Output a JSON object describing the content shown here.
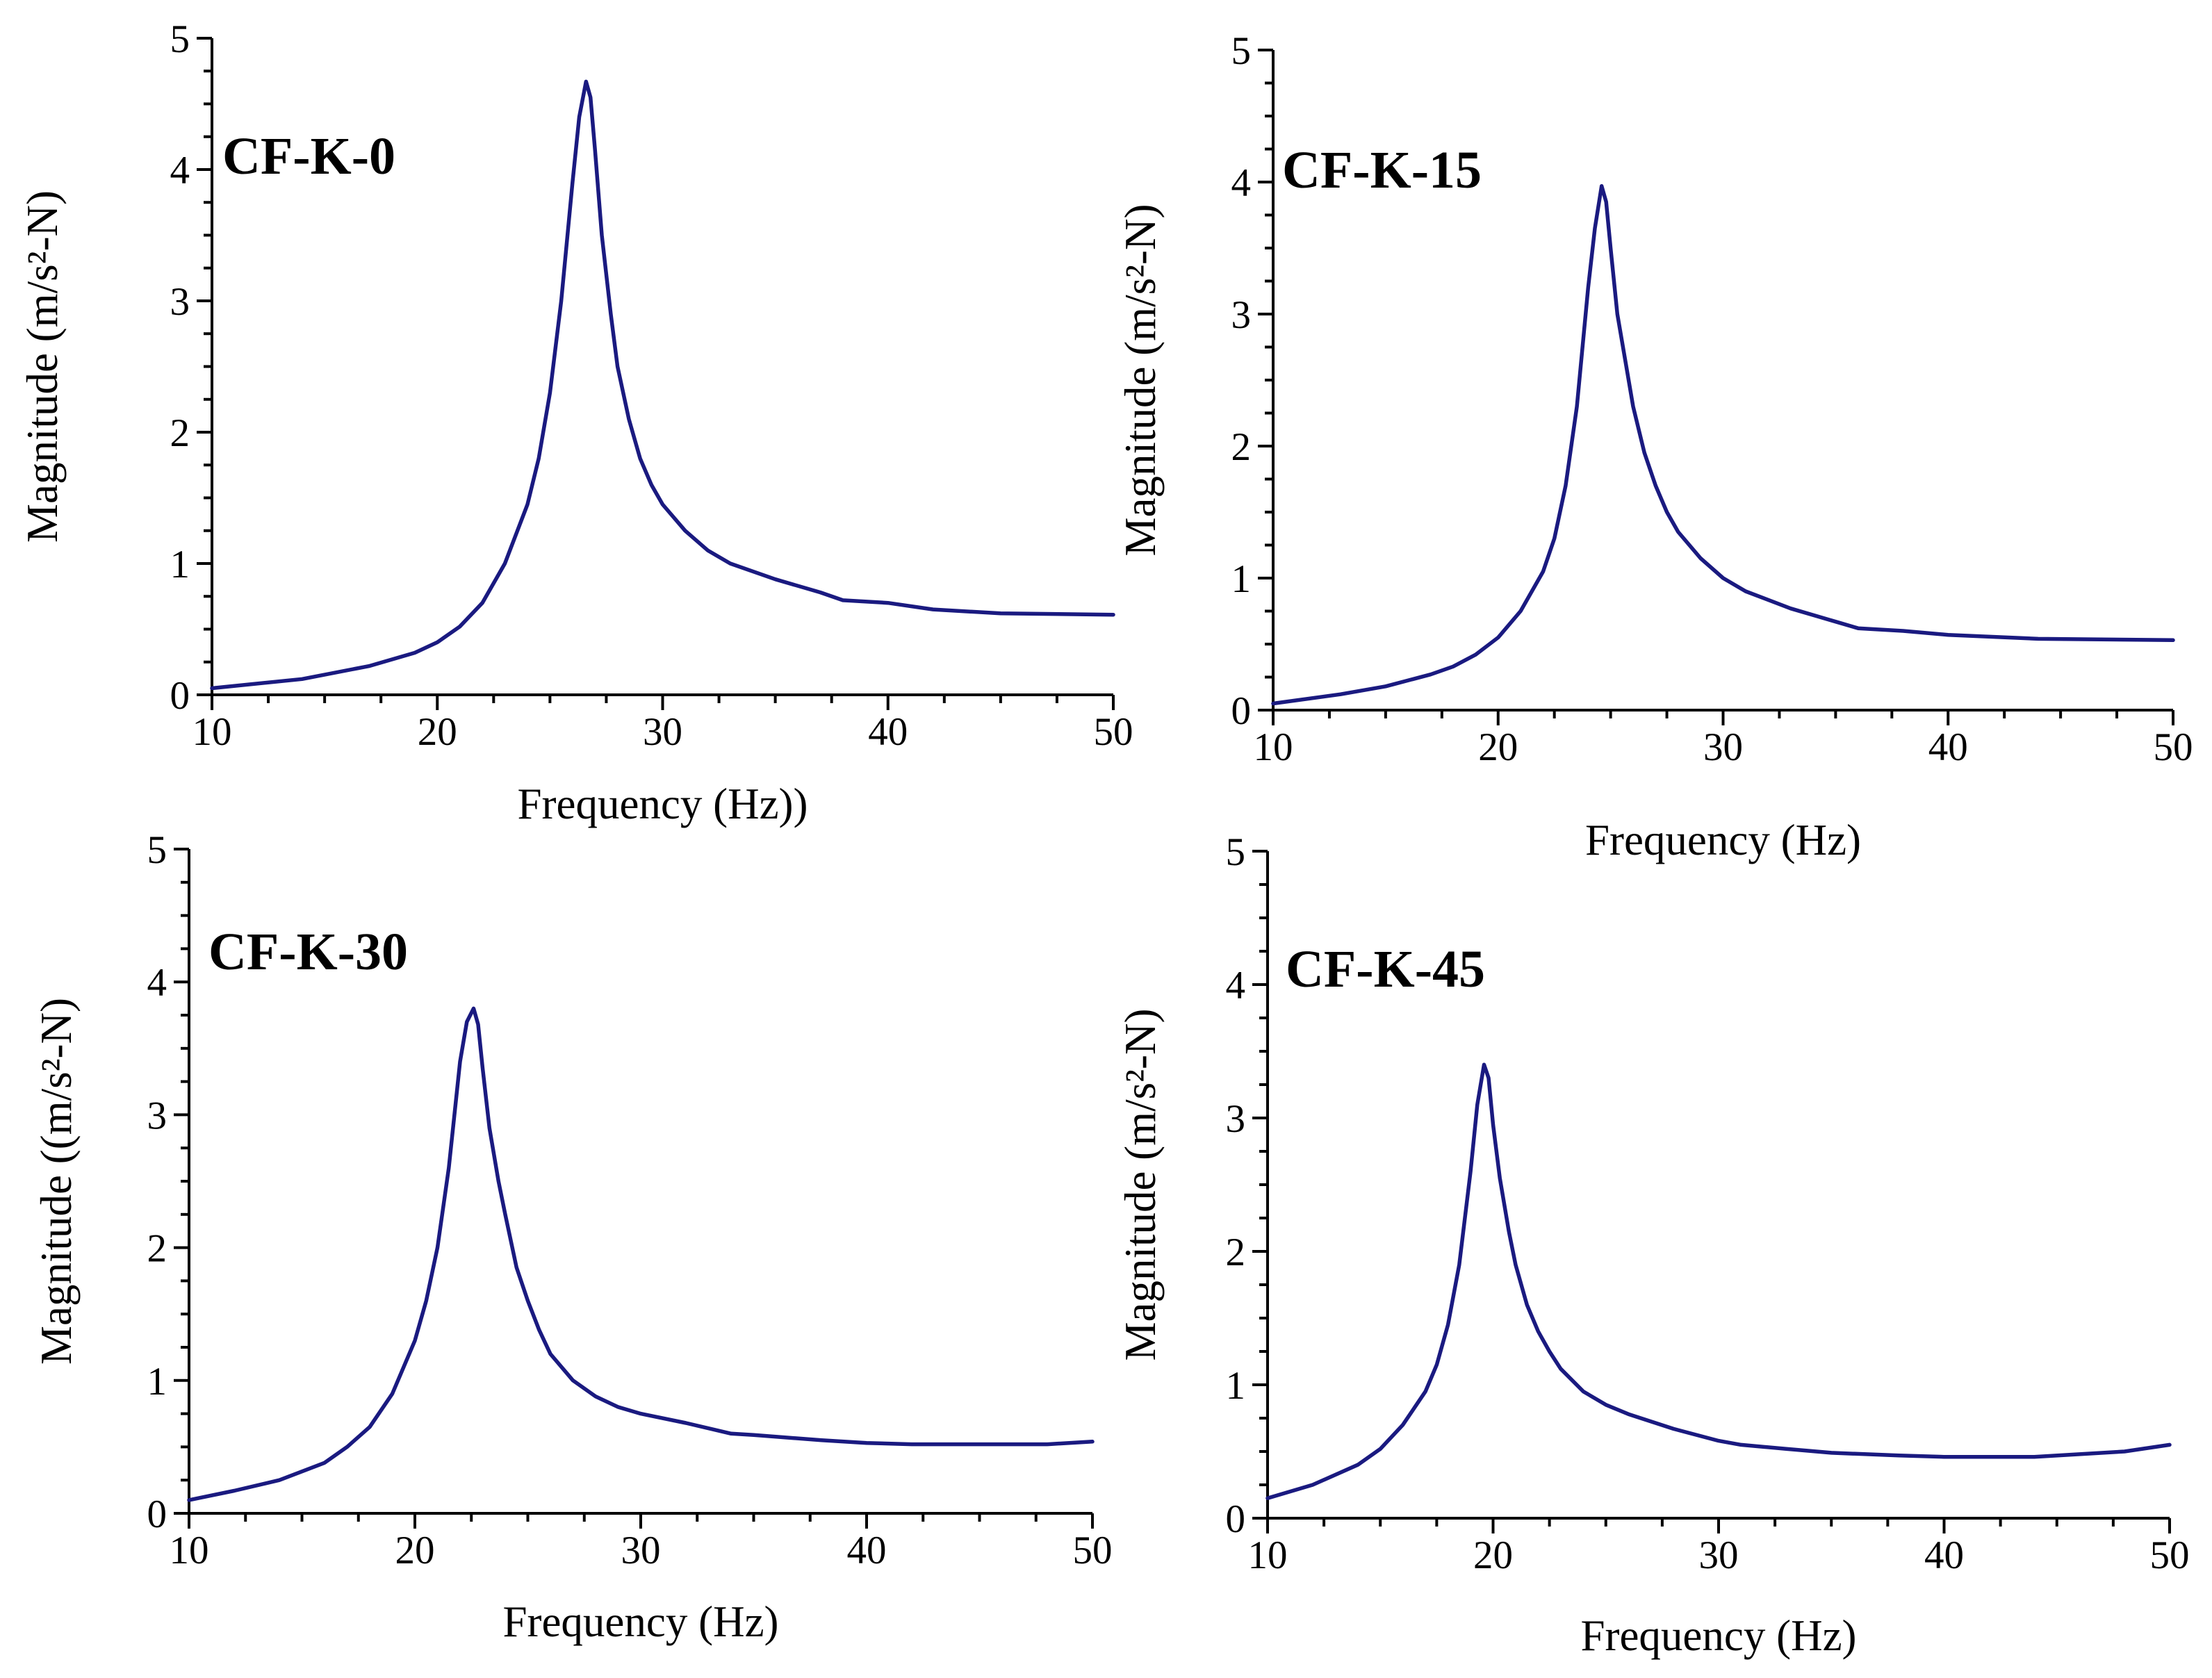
{
  "colors": {
    "curve": "#1a1a80",
    "axis": "#000000",
    "background": "#ffffff"
  },
  "chart_data": [
    {
      "type": "line",
      "title": "CF-K-0",
      "xlabel": "Frequency (Hz))",
      "ylabel": "Magnitude (m/s²-N)",
      "xlim": [
        10,
        50
      ],
      "ylim": [
        0,
        5
      ],
      "xticks": [
        10,
        20,
        30,
        40,
        50
      ],
      "yticks": [
        0,
        1,
        2,
        3,
        4,
        5
      ],
      "series": [
        {
          "name": "CF-K-0",
          "x": [
            10,
            14,
            17,
            19,
            20,
            21,
            22,
            23,
            24,
            24.5,
            25,
            25.5,
            26,
            26.3,
            26.6,
            26.8,
            27,
            27.3,
            27.7,
            28,
            28.5,
            29,
            29.5,
            30,
            31,
            32,
            33,
            35,
            37,
            38,
            40,
            42,
            45,
            50
          ],
          "values": [
            0.05,
            0.12,
            0.22,
            0.32,
            0.4,
            0.52,
            0.7,
            1.0,
            1.45,
            1.8,
            2.3,
            3.0,
            3.9,
            4.4,
            4.67,
            4.55,
            4.15,
            3.5,
            2.9,
            2.5,
            2.1,
            1.8,
            1.6,
            1.45,
            1.25,
            1.1,
            1.0,
            0.88,
            0.78,
            0.72,
            0.7,
            0.65,
            0.62,
            0.61
          ]
        }
      ]
    },
    {
      "type": "line",
      "title": "CF-K-15",
      "xlabel": "Frequency (Hz)",
      "ylabel": "Magnitude (m/s²-N)",
      "xlim": [
        10,
        50
      ],
      "ylim": [
        0,
        5
      ],
      "xticks": [
        10,
        20,
        30,
        40,
        50
      ],
      "yticks": [
        0,
        1,
        2,
        3,
        4,
        5
      ],
      "series": [
        {
          "name": "CF-K-15",
          "x": [
            10,
            13,
            15,
            17,
            18,
            19,
            20,
            21,
            22,
            22.5,
            23,
            23.5,
            24,
            24.3,
            24.6,
            24.8,
            25,
            25.3,
            25.7,
            26,
            26.5,
            27,
            27.5,
            28,
            29,
            30,
            31,
            33,
            35,
            36,
            38,
            40,
            44,
            50
          ],
          "values": [
            0.05,
            0.12,
            0.18,
            0.27,
            0.33,
            0.42,
            0.55,
            0.75,
            1.05,
            1.3,
            1.7,
            2.3,
            3.2,
            3.65,
            3.97,
            3.85,
            3.5,
            3.0,
            2.6,
            2.3,
            1.95,
            1.7,
            1.5,
            1.35,
            1.15,
            1.0,
            0.9,
            0.77,
            0.67,
            0.62,
            0.6,
            0.57,
            0.54,
            0.53
          ]
        }
      ]
    },
    {
      "type": "line",
      "title": "CF-K-30",
      "xlabel": "Frequency (Hz)",
      "ylabel": "Magnitude ((m/s²-N)",
      "xlim": [
        10,
        50
      ],
      "ylim": [
        0,
        5
      ],
      "xticks": [
        10,
        20,
        30,
        40,
        50
      ],
      "yticks": [
        0,
        1,
        2,
        3,
        4,
        5
      ],
      "series": [
        {
          "name": "CF-K-30",
          "x": [
            10,
            12,
            14,
            16,
            17,
            18,
            19,
            20,
            20.5,
            21,
            21.5,
            22,
            22.3,
            22.6,
            22.8,
            23,
            23.3,
            23.7,
            24,
            24.5,
            25,
            25.5,
            26,
            27,
            28,
            29,
            30,
            32,
            34,
            35,
            38,
            40,
            42,
            45,
            48,
            50
          ],
          "values": [
            0.1,
            0.17,
            0.25,
            0.38,
            0.5,
            0.65,
            0.9,
            1.3,
            1.6,
            2.0,
            2.6,
            3.4,
            3.7,
            3.8,
            3.68,
            3.35,
            2.9,
            2.5,
            2.25,
            1.85,
            1.6,
            1.38,
            1.2,
            1.0,
            0.88,
            0.8,
            0.75,
            0.68,
            0.6,
            0.59,
            0.55,
            0.53,
            0.52,
            0.52,
            0.52,
            0.54
          ]
        }
      ]
    },
    {
      "type": "line",
      "title": "CF-K-45",
      "xlabel": "Frequency (Hz)",
      "ylabel": "Magnitude (m/s²-N)",
      "xlim": [
        10,
        50
      ],
      "ylim": [
        0,
        5
      ],
      "xticks": [
        10,
        20,
        30,
        40,
        50
      ],
      "yticks": [
        0,
        1,
        2,
        3,
        4,
        5
      ],
      "series": [
        {
          "name": "CF-K-45",
          "x": [
            10,
            12,
            14,
            15,
            16,
            17,
            17.5,
            18,
            18.5,
            19,
            19.3,
            19.6,
            19.8,
            20,
            20.3,
            20.7,
            21,
            21.5,
            22,
            22.5,
            23,
            24,
            25,
            26,
            28,
            30,
            31,
            33,
            35,
            38,
            40,
            44,
            48,
            50
          ],
          "values": [
            0.15,
            0.25,
            0.4,
            0.52,
            0.7,
            0.95,
            1.15,
            1.45,
            1.9,
            2.6,
            3.1,
            3.4,
            3.3,
            2.95,
            2.55,
            2.15,
            1.9,
            1.6,
            1.4,
            1.25,
            1.12,
            0.95,
            0.85,
            0.78,
            0.67,
            0.58,
            0.55,
            0.52,
            0.49,
            0.47,
            0.46,
            0.46,
            0.5,
            0.55
          ]
        }
      ]
    }
  ]
}
